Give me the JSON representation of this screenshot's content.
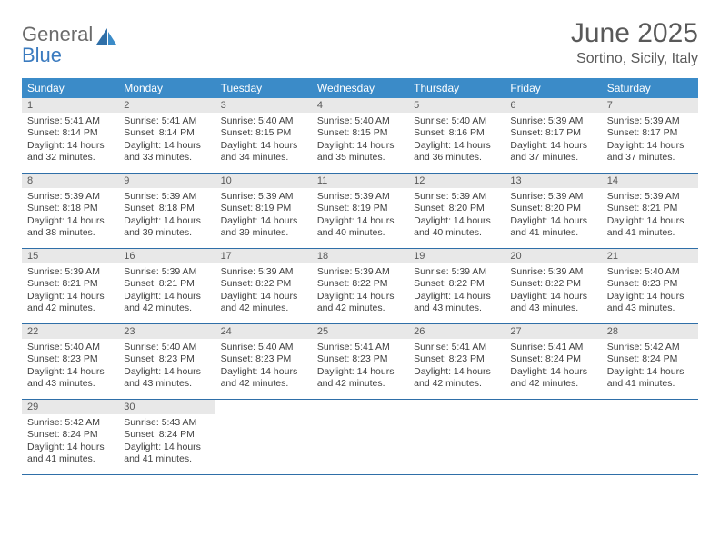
{
  "logo": {
    "line1": "General",
    "line2": "Blue"
  },
  "title": {
    "month": "June 2025",
    "location": "Sortino, Sicily, Italy"
  },
  "colors": {
    "header_bg": "#3b8bc8",
    "week_border": "#2f6fa8",
    "daynum_bg": "#e8e8e8",
    "text": "#404040",
    "title_text": "#595959",
    "logo_gray": "#6b6b6b",
    "logo_blue": "#3b7bbf"
  },
  "days_of_week": [
    "Sunday",
    "Monday",
    "Tuesday",
    "Wednesday",
    "Thursday",
    "Friday",
    "Saturday"
  ],
  "weeks": [
    [
      {
        "n": "1",
        "sr": "Sunrise: 5:41 AM",
        "ss": "Sunset: 8:14 PM",
        "d1": "Daylight: 14 hours",
        "d2": "and 32 minutes."
      },
      {
        "n": "2",
        "sr": "Sunrise: 5:41 AM",
        "ss": "Sunset: 8:14 PM",
        "d1": "Daylight: 14 hours",
        "d2": "and 33 minutes."
      },
      {
        "n": "3",
        "sr": "Sunrise: 5:40 AM",
        "ss": "Sunset: 8:15 PM",
        "d1": "Daylight: 14 hours",
        "d2": "and 34 minutes."
      },
      {
        "n": "4",
        "sr": "Sunrise: 5:40 AM",
        "ss": "Sunset: 8:15 PM",
        "d1": "Daylight: 14 hours",
        "d2": "and 35 minutes."
      },
      {
        "n": "5",
        "sr": "Sunrise: 5:40 AM",
        "ss": "Sunset: 8:16 PM",
        "d1": "Daylight: 14 hours",
        "d2": "and 36 minutes."
      },
      {
        "n": "6",
        "sr": "Sunrise: 5:39 AM",
        "ss": "Sunset: 8:17 PM",
        "d1": "Daylight: 14 hours",
        "d2": "and 37 minutes."
      },
      {
        "n": "7",
        "sr": "Sunrise: 5:39 AM",
        "ss": "Sunset: 8:17 PM",
        "d1": "Daylight: 14 hours",
        "d2": "and 37 minutes."
      }
    ],
    [
      {
        "n": "8",
        "sr": "Sunrise: 5:39 AM",
        "ss": "Sunset: 8:18 PM",
        "d1": "Daylight: 14 hours",
        "d2": "and 38 minutes."
      },
      {
        "n": "9",
        "sr": "Sunrise: 5:39 AM",
        "ss": "Sunset: 8:18 PM",
        "d1": "Daylight: 14 hours",
        "d2": "and 39 minutes."
      },
      {
        "n": "10",
        "sr": "Sunrise: 5:39 AM",
        "ss": "Sunset: 8:19 PM",
        "d1": "Daylight: 14 hours",
        "d2": "and 39 minutes."
      },
      {
        "n": "11",
        "sr": "Sunrise: 5:39 AM",
        "ss": "Sunset: 8:19 PM",
        "d1": "Daylight: 14 hours",
        "d2": "and 40 minutes."
      },
      {
        "n": "12",
        "sr": "Sunrise: 5:39 AM",
        "ss": "Sunset: 8:20 PM",
        "d1": "Daylight: 14 hours",
        "d2": "and 40 minutes."
      },
      {
        "n": "13",
        "sr": "Sunrise: 5:39 AM",
        "ss": "Sunset: 8:20 PM",
        "d1": "Daylight: 14 hours",
        "d2": "and 41 minutes."
      },
      {
        "n": "14",
        "sr": "Sunrise: 5:39 AM",
        "ss": "Sunset: 8:21 PM",
        "d1": "Daylight: 14 hours",
        "d2": "and 41 minutes."
      }
    ],
    [
      {
        "n": "15",
        "sr": "Sunrise: 5:39 AM",
        "ss": "Sunset: 8:21 PM",
        "d1": "Daylight: 14 hours",
        "d2": "and 42 minutes."
      },
      {
        "n": "16",
        "sr": "Sunrise: 5:39 AM",
        "ss": "Sunset: 8:21 PM",
        "d1": "Daylight: 14 hours",
        "d2": "and 42 minutes."
      },
      {
        "n": "17",
        "sr": "Sunrise: 5:39 AM",
        "ss": "Sunset: 8:22 PM",
        "d1": "Daylight: 14 hours",
        "d2": "and 42 minutes."
      },
      {
        "n": "18",
        "sr": "Sunrise: 5:39 AM",
        "ss": "Sunset: 8:22 PM",
        "d1": "Daylight: 14 hours",
        "d2": "and 42 minutes."
      },
      {
        "n": "19",
        "sr": "Sunrise: 5:39 AM",
        "ss": "Sunset: 8:22 PM",
        "d1": "Daylight: 14 hours",
        "d2": "and 43 minutes."
      },
      {
        "n": "20",
        "sr": "Sunrise: 5:39 AM",
        "ss": "Sunset: 8:22 PM",
        "d1": "Daylight: 14 hours",
        "d2": "and 43 minutes."
      },
      {
        "n": "21",
        "sr": "Sunrise: 5:40 AM",
        "ss": "Sunset: 8:23 PM",
        "d1": "Daylight: 14 hours",
        "d2": "and 43 minutes."
      }
    ],
    [
      {
        "n": "22",
        "sr": "Sunrise: 5:40 AM",
        "ss": "Sunset: 8:23 PM",
        "d1": "Daylight: 14 hours",
        "d2": "and 43 minutes."
      },
      {
        "n": "23",
        "sr": "Sunrise: 5:40 AM",
        "ss": "Sunset: 8:23 PM",
        "d1": "Daylight: 14 hours",
        "d2": "and 43 minutes."
      },
      {
        "n": "24",
        "sr": "Sunrise: 5:40 AM",
        "ss": "Sunset: 8:23 PM",
        "d1": "Daylight: 14 hours",
        "d2": "and 42 minutes."
      },
      {
        "n": "25",
        "sr": "Sunrise: 5:41 AM",
        "ss": "Sunset: 8:23 PM",
        "d1": "Daylight: 14 hours",
        "d2": "and 42 minutes."
      },
      {
        "n": "26",
        "sr": "Sunrise: 5:41 AM",
        "ss": "Sunset: 8:23 PM",
        "d1": "Daylight: 14 hours",
        "d2": "and 42 minutes."
      },
      {
        "n": "27",
        "sr": "Sunrise: 5:41 AM",
        "ss": "Sunset: 8:24 PM",
        "d1": "Daylight: 14 hours",
        "d2": "and 42 minutes."
      },
      {
        "n": "28",
        "sr": "Sunrise: 5:42 AM",
        "ss": "Sunset: 8:24 PM",
        "d1": "Daylight: 14 hours",
        "d2": "and 41 minutes."
      }
    ],
    [
      {
        "n": "29",
        "sr": "Sunrise: 5:42 AM",
        "ss": "Sunset: 8:24 PM",
        "d1": "Daylight: 14 hours",
        "d2": "and 41 minutes."
      },
      {
        "n": "30",
        "sr": "Sunrise: 5:43 AM",
        "ss": "Sunset: 8:24 PM",
        "d1": "Daylight: 14 hours",
        "d2": "and 41 minutes."
      },
      {
        "empty": true
      },
      {
        "empty": true
      },
      {
        "empty": true
      },
      {
        "empty": true
      },
      {
        "empty": true
      }
    ]
  ]
}
